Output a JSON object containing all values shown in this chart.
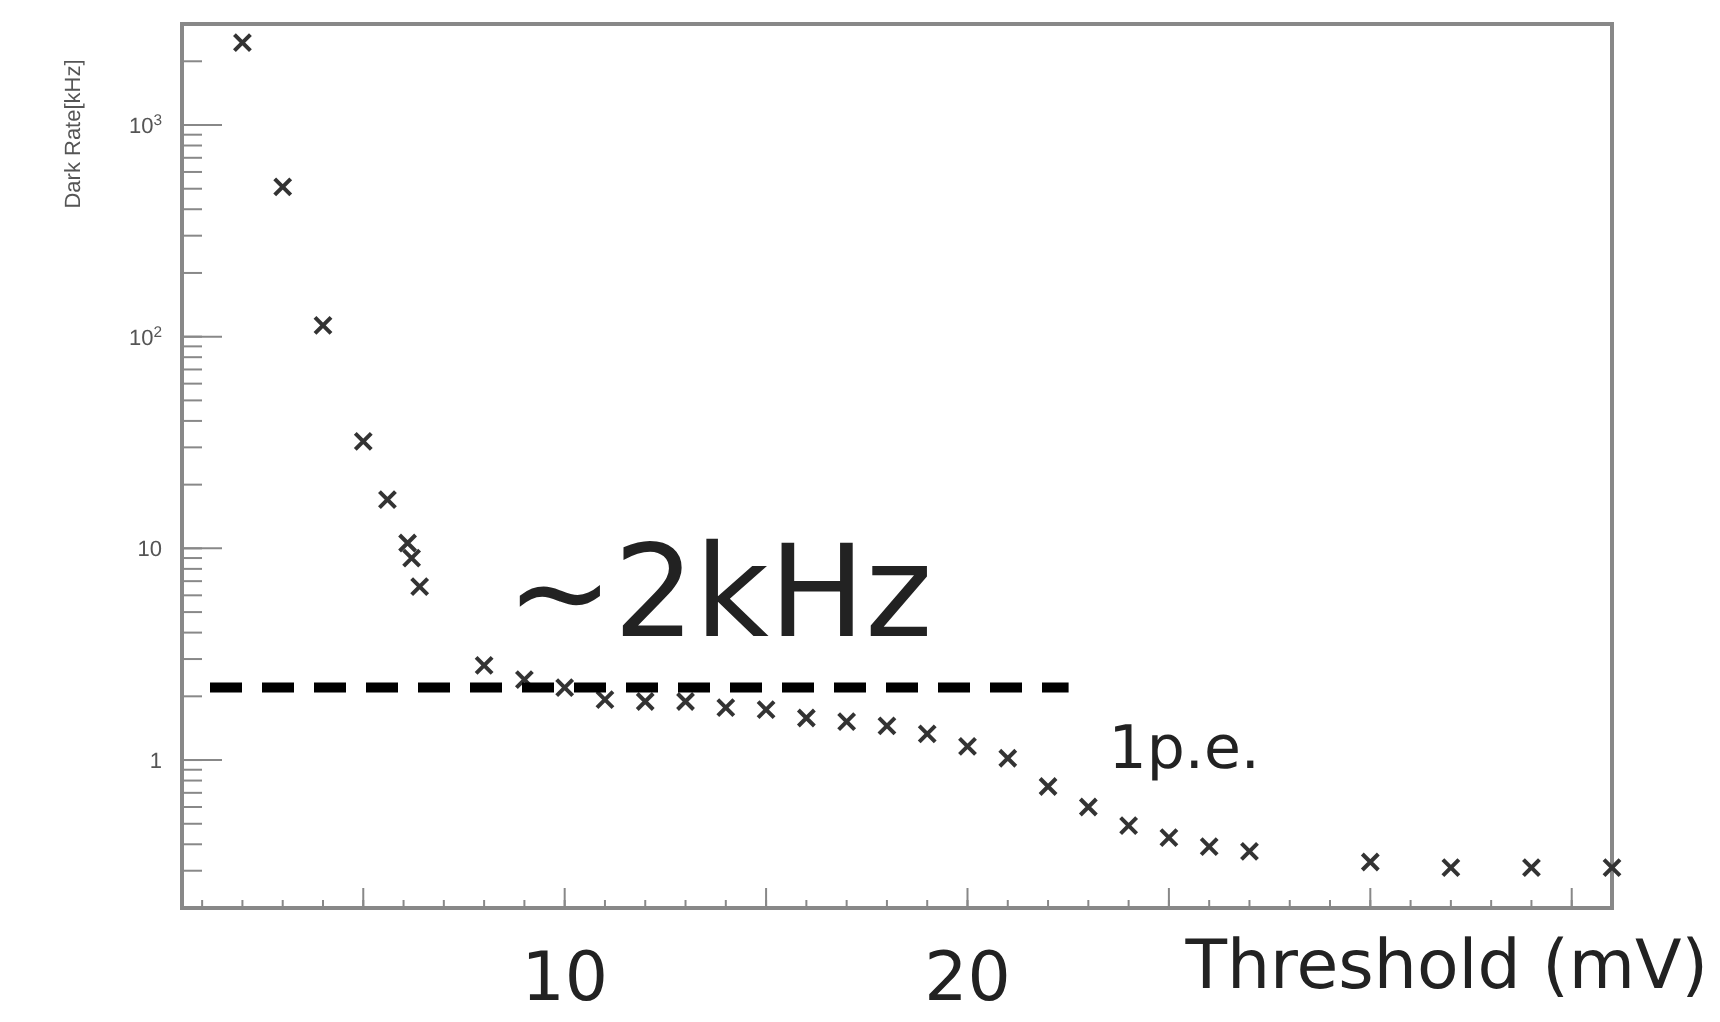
{
  "chart_data": {
    "type": "scatter",
    "xlabel": "Threshold (mV)",
    "ylabel": "Dark Rate[kHz]",
    "log": "y",
    "marker": "cross",
    "grid": false,
    "xlim": [
      0.5,
      36
    ],
    "ylim": [
      0.2,
      3000
    ],
    "xticks": [
      {
        "value": 5,
        "label": null
      },
      10,
      {
        "value": 15,
        "label": null
      },
      20,
      {
        "value": 25,
        "label": null
      },
      {
        "value": 30,
        "label": null
      },
      {
        "value": 35,
        "label": null
      }
    ],
    "yticks": [
      1,
      10,
      {
        "value": 100,
        "label": "10$^{2}$"
      },
      {
        "value": 1000,
        "label": "10$^{3}$"
      }
    ],
    "series": [
      {
        "color": "#333333",
        "x": [
          2,
          3,
          4,
          5,
          5.6,
          6.1,
          6.2,
          6.4,
          8,
          9,
          10,
          11,
          12,
          13,
          14,
          15,
          16,
          17,
          18,
          19,
          20,
          21,
          22,
          23,
          24,
          25,
          26,
          27,
          30,
          32,
          34,
          36
        ],
        "values": [
          2450,
          510,
          113,
          32,
          17,
          10.6,
          9,
          6.6,
          2.8,
          2.4,
          2.2,
          1.93,
          1.89,
          1.89,
          1.77,
          1.73,
          1.58,
          1.52,
          1.45,
          1.33,
          1.16,
          1.02,
          0.75,
          0.6,
          0.49,
          0.43,
          0.39,
          0.37,
          0.33,
          0.31,
          0.31,
          0.31
        ]
      }
    ],
    "ref_lines": [
      {
        "axis": "y",
        "value": 2.2,
        "label": "~2kHz",
        "color": "#000000",
        "line_style": "dashed"
      }
    ],
    "annotations": [
      "1p.e."
    ]
  }
}
